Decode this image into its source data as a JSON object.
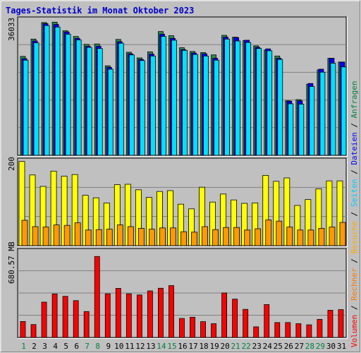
{
  "title": "Tages-Statistik im Monat Oktober 2023",
  "colors": {
    "bg": "#c0c0c0",
    "plot_bg": "#c0c0c0",
    "anfragen": "#00ccff",
    "anfragen_shadow": "#007f66",
    "dateien": "#0000ff",
    "seiten": "#00e0ff",
    "besuche": "#ffff00",
    "rechner": "#ff9900",
    "volumen": "#ff0000",
    "weekend_day": "#008040",
    "weekday_day": "#000000"
  },
  "right_legend": [
    {
      "text": "Anfragen",
      "color": "#008040"
    },
    {
      "text": "Dateien",
      "color": "#0000ff"
    },
    {
      "text": "Seiten",
      "color": "#00ccff"
    },
    {
      "text": "Besuche",
      "color": "#ffaa00"
    },
    {
      "text": "Rechner",
      "color": "#ff7700"
    },
    {
      "text": "Volumen",
      "color": "#ff0000"
    }
  ],
  "chart_data": [
    {
      "type": "bar",
      "name": "requests-panel",
      "ylabel": "36033",
      "ylim": [
        0,
        36033
      ],
      "categories": [
        "1",
        "2",
        "3",
        "4",
        "5",
        "6",
        "7",
        "8",
        "9",
        "10",
        "11",
        "12",
        "13",
        "14",
        "15",
        "16",
        "17",
        "18",
        "19",
        "20",
        "21",
        "22",
        "23",
        "24",
        "25",
        "26",
        "27",
        "28",
        "29",
        "30",
        "31"
      ],
      "series": [
        {
          "name": "Anfragen",
          "values": [
            26300,
            30900,
            35300,
            35400,
            33100,
            31600,
            29500,
            29600,
            23800,
            30800,
            27400,
            25900,
            27500,
            32900,
            31800,
            28600,
            27600,
            27300,
            26700,
            31900,
            31400,
            30500,
            29100,
            28000,
            26400,
            14500,
            14800,
            18900,
            22700,
            25800,
            24800
          ]
        },
        {
          "name": "Dateien",
          "values": [
            25700,
            30400,
            35000,
            34800,
            32800,
            31100,
            29000,
            29000,
            23400,
            30200,
            27000,
            25500,
            26900,
            32200,
            31100,
            28100,
            27200,
            27000,
            25800,
            31400,
            31300,
            30600,
            28700,
            28300,
            25800,
            14400,
            14500,
            19100,
            22900,
            25800,
            24800
          ]
        },
        {
          "name": "Seiten",
          "values": [
            25300,
            29900,
            34500,
            34100,
            32200,
            30700,
            28700,
            28400,
            22900,
            29800,
            26700,
            25200,
            26400,
            31600,
            30600,
            27900,
            26800,
            26400,
            25300,
            30900,
            30400,
            30000,
            28400,
            27800,
            25500,
            13700,
            13600,
            18300,
            22100,
            24500,
            23500
          ]
        }
      ]
    },
    {
      "type": "bar",
      "name": "visits-panel",
      "ylabel": "200",
      "ylim": [
        0,
        200
      ],
      "categories": [
        "1",
        "2",
        "3",
        "4",
        "5",
        "6",
        "7",
        "8",
        "9",
        "10",
        "11",
        "12",
        "13",
        "14",
        "15",
        "16",
        "17",
        "18",
        "19",
        "20",
        "21",
        "22",
        "23",
        "24",
        "25",
        "26",
        "27",
        "28",
        "29",
        "30",
        "31"
      ],
      "series": [
        {
          "name": "Besuche",
          "values": [
            199,
            167,
            140,
            176,
            164,
            168,
            119,
            113,
            101,
            144,
            145,
            132,
            114,
            128,
            130,
            98,
            87,
            138,
            103,
            122,
            108,
            100,
            101,
            166,
            152,
            160,
            95,
            109,
            134,
            153,
            153
          ]
        },
        {
          "name": "Rechner",
          "values": [
            60,
            45,
            44,
            49,
            48,
            54,
            37,
            38,
            39,
            49,
            45,
            41,
            39,
            42,
            42,
            33,
            32,
            45,
            38,
            43,
            43,
            37,
            40,
            61,
            58,
            44,
            37,
            37,
            41,
            44,
            55
          ]
        }
      ]
    },
    {
      "type": "bar",
      "name": "volume-panel",
      "ylabel": "680.57 MB",
      "ylim": [
        0,
        680.57
      ],
      "categories": [
        "1",
        "2",
        "3",
        "4",
        "5",
        "6",
        "7",
        "8",
        "9",
        "10",
        "11",
        "12",
        "13",
        "14",
        "15",
        "16",
        "17",
        "18",
        "19",
        "20",
        "21",
        "22",
        "23",
        "24",
        "25",
        "26",
        "27",
        "28",
        "29",
        "30",
        "31"
      ],
      "series": [
        {
          "name": "Volumen",
          "values": [
            126,
            102,
            279,
            344,
            325,
            291,
            205,
            640,
            345,
            388,
            345,
            336,
            368,
            389,
            410,
            150,
            160,
            125,
            109,
            352,
            303,
            222,
            84,
            260,
            118,
            118,
            109,
            100,
            143,
            215,
            220
          ]
        }
      ]
    }
  ],
  "x_axis": {
    "labels": [
      "1",
      "2",
      "3",
      "4",
      "5",
      "6",
      "7",
      "8",
      "9",
      "10",
      "11",
      "12",
      "13",
      "14",
      "15",
      "16",
      "17",
      "18",
      "19",
      "20",
      "21",
      "22",
      "23",
      "24",
      "25",
      "26",
      "27",
      "28",
      "29",
      "30",
      "31"
    ],
    "weekend_days": [
      "1",
      "7",
      "8",
      "14",
      "15",
      "21",
      "22",
      "28",
      "29"
    ]
  }
}
